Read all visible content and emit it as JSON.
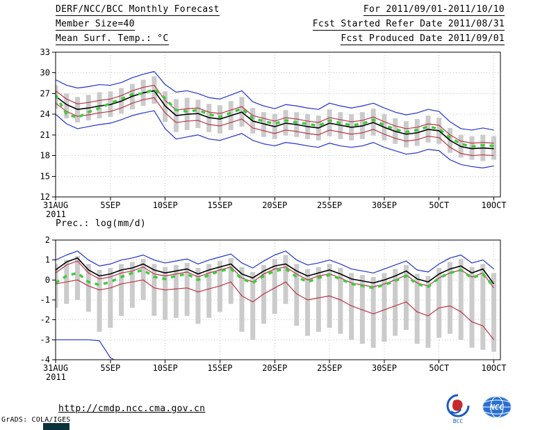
{
  "header": {
    "title": "DERF/NCC/BCC Monthly Forecast",
    "member_size": "Member Size=40",
    "temp_label": "Mean Surf. Temp.: °C",
    "for_range": "For 2011/09/01-2011/10/10",
    "refer_date": "Fcst Started Refer Date 2011/08/31",
    "produced_date": "Fcst Produced Date 2011/09/01"
  },
  "panels": {
    "prec_label": "Prec.: log(mm/d)"
  },
  "footer": {
    "url": "http://cmdp.ncc.cma.gov.cn",
    "credit": "GrADS: COLA/IGES",
    "bcc_label": "BCC",
    "ncc_label": "NCC"
  },
  "chart_data": [
    {
      "id": "mean-surface-temperature",
      "type": "line",
      "title": "Mean Surf. Temp.: °C",
      "xlabel": "",
      "ylabel": "°C",
      "xlim": [
        0,
        40.6
      ],
      "ylim": [
        12,
        33
      ],
      "yticks": [
        12,
        15,
        18,
        21,
        24,
        27,
        30,
        33
      ],
      "x_tick_positions": [
        0,
        5,
        10,
        15,
        20,
        25,
        30,
        35,
        40
      ],
      "x_tick_labels": [
        "31AUG",
        "5SEP",
        "10SEP",
        "15SEP",
        "20SEP",
        "25SEP",
        "30SEP",
        "5OCT",
        "10OCT"
      ],
      "x_sub_label": "2011",
      "grid": "dotted",
      "grid_color": "#c0c0c0",
      "bars": {
        "name": "ensemble-spread",
        "color": "#cbcbcb",
        "high": [
          28.2,
          27.0,
          26.5,
          26.8,
          27.2,
          27.3,
          27.8,
          28.4,
          29.0,
          29.5,
          27.3,
          26.2,
          26.4,
          26.1,
          25.5,
          25.3,
          25.9,
          26.5,
          24.9,
          24.3,
          24.0,
          24.6,
          24.3,
          24.0,
          23.8,
          24.7,
          24.3,
          24.0,
          24.3,
          24.8,
          24.0,
          23.4,
          23.0,
          23.3,
          23.8,
          23.5,
          22.0,
          21.0,
          20.8,
          21.0,
          20.8
        ],
        "low": [
          24.8,
          23.4,
          22.8,
          23.1,
          23.4,
          23.6,
          24.1,
          24.7,
          25.2,
          25.5,
          22.9,
          21.4,
          21.7,
          22.0,
          21.4,
          21.2,
          21.7,
          22.2,
          21.2,
          20.7,
          20.4,
          20.9,
          20.7,
          20.4,
          20.2,
          20.8,
          20.4,
          20.2,
          20.4,
          20.9,
          20.2,
          19.7,
          19.2,
          19.4,
          19.9,
          19.7,
          18.4,
          17.7,
          17.4,
          17.2,
          17.4
        ]
      },
      "series": [
        {
          "name": "ensemble-max",
          "color": "#2233cc",
          "width": 1.2,
          "values": [
            29.0,
            28.2,
            27.8,
            28.0,
            28.3,
            28.2,
            28.6,
            29.3,
            29.8,
            30.2,
            28.3,
            27.2,
            27.4,
            27.0,
            26.4,
            26.2,
            26.8,
            27.4,
            25.8,
            25.2,
            24.8,
            25.4,
            25.2,
            24.9,
            24.7,
            25.6,
            25.2,
            24.9,
            25.2,
            25.6,
            24.9,
            24.3,
            23.9,
            24.2,
            24.7,
            24.4,
            22.9,
            21.9,
            21.7,
            22.0,
            21.7
          ]
        },
        {
          "name": "ensemble-min",
          "color": "#2233cc",
          "width": 1.2,
          "values": [
            24.0,
            22.6,
            21.9,
            22.2,
            22.5,
            22.7,
            23.2,
            23.8,
            24.2,
            24.5,
            21.9,
            20.4,
            20.7,
            21.0,
            20.4,
            20.2,
            20.7,
            21.2,
            20.2,
            19.7,
            19.4,
            19.9,
            19.7,
            19.4,
            19.2,
            19.8,
            19.4,
            19.2,
            19.4,
            19.9,
            19.2,
            18.7,
            18.2,
            18.4,
            18.9,
            18.7,
            17.4,
            16.7,
            16.4,
            16.2,
            16.5
          ]
        },
        {
          "name": "upper-quartile",
          "color": "#bb3344",
          "width": 1.2,
          "values": [
            27.4,
            26.2,
            25.5,
            25.7,
            26.0,
            26.2,
            26.7,
            27.4,
            27.9,
            28.2,
            26.0,
            24.6,
            24.8,
            24.9,
            24.3,
            24.1,
            24.6,
            25.1,
            23.8,
            23.4,
            23.0,
            23.5,
            23.3,
            23.0,
            22.8,
            23.5,
            23.2,
            22.9,
            23.1,
            23.6,
            22.9,
            22.3,
            21.9,
            22.1,
            22.6,
            22.4,
            21.0,
            20.1,
            19.8,
            19.9,
            19.8
          ]
        },
        {
          "name": "lower-quartile",
          "color": "#bb3344",
          "width": 1.2,
          "values": [
            25.6,
            24.4,
            23.7,
            23.9,
            24.2,
            24.4,
            24.9,
            25.6,
            26.1,
            26.4,
            24.2,
            22.8,
            23.0,
            23.1,
            22.5,
            22.3,
            22.8,
            23.3,
            22.0,
            21.6,
            21.2,
            21.7,
            21.5,
            21.2,
            21.0,
            21.7,
            21.4,
            21.1,
            21.3,
            21.8,
            21.1,
            20.5,
            20.1,
            20.3,
            20.8,
            20.6,
            19.2,
            18.3,
            18.0,
            18.1,
            18.0
          ]
        },
        {
          "name": "ensemble-median",
          "color": "#000000",
          "width": 1.6,
          "values": [
            26.6,
            25.4,
            24.7,
            24.9,
            25.2,
            25.4,
            25.9,
            26.6,
            27.1,
            27.4,
            25.2,
            23.8,
            24.0,
            24.1,
            23.5,
            23.3,
            23.8,
            24.3,
            23.0,
            22.6,
            22.2,
            22.7,
            22.5,
            22.2,
            22.0,
            22.7,
            22.4,
            22.1,
            22.3,
            22.8,
            22.1,
            21.5,
            21.1,
            21.3,
            21.8,
            21.6,
            20.2,
            19.3,
            19.0,
            19.1,
            19.0
          ]
        },
        {
          "name": "forecast-dashed",
          "color": "#3ecb3e",
          "width": 3.5,
          "dash": "6,7",
          "values": [
            26.8,
            24.0,
            23.5,
            24.3,
            24.9,
            25.6,
            26.2,
            26.9,
            27.0,
            27.6,
            26.3,
            24.6,
            24.4,
            24.6,
            24.0,
            23.6,
            24.2,
            24.8,
            23.4,
            23.0,
            22.6,
            23.1,
            22.8,
            22.6,
            22.3,
            23.1,
            22.7,
            22.4,
            22.6,
            23.2,
            22.4,
            21.8,
            21.4,
            21.7,
            22.2,
            21.9,
            20.6,
            19.7,
            19.3,
            19.5,
            19.4
          ]
        }
      ]
    },
    {
      "id": "precipitation",
      "type": "line",
      "title": "Prec.: log(mm/d)",
      "xlabel": "",
      "ylabel": "log(mm/d)",
      "xlim": [
        0,
        40.6
      ],
      "ylim": [
        -4,
        2
      ],
      "yticks": [
        -4,
        -3,
        -2,
        -1,
        0,
        1,
        2
      ],
      "x_tick_positions": [
        0,
        5,
        10,
        15,
        20,
        25,
        30,
        35,
        40
      ],
      "x_tick_labels": [
        "31AUG",
        "5SEP",
        "10SEP",
        "15SEP",
        "20SEP",
        "25SEP",
        "30SEP",
        "5OCT",
        "10OCT"
      ],
      "x_sub_label": "2011",
      "grid": "dotted",
      "grid_color": "#c0c0c0",
      "bars": {
        "name": "ensemble-spread",
        "color": "#cbcbcb",
        "high": [
          0.8,
          1.0,
          1.2,
          0.8,
          0.5,
          0.6,
          0.8,
          0.9,
          1.05,
          0.8,
          0.65,
          0.75,
          0.85,
          0.6,
          0.8,
          0.95,
          1.1,
          0.65,
          0.4,
          0.75,
          1.05,
          1.25,
          0.8,
          0.55,
          0.65,
          0.8,
          0.6,
          0.35,
          0.25,
          0.15,
          0.35,
          0.55,
          0.75,
          0.3,
          0.2,
          0.6,
          0.9,
          1.05,
          0.65,
          0.8,
          0.35
        ],
        "low": [
          -1.4,
          -1.2,
          -1.0,
          -1.6,
          -2.6,
          -2.4,
          -1.8,
          -1.4,
          -1.0,
          -1.8,
          -2.0,
          -1.9,
          -1.8,
          -2.2,
          -1.9,
          -1.6,
          -1.2,
          -2.6,
          -3.0,
          -2.2,
          -1.7,
          -1.2,
          -2.3,
          -2.8,
          -2.6,
          -2.4,
          -2.7,
          -3.0,
          -3.2,
          -3.4,
          -3.1,
          -2.8,
          -2.5,
          -3.2,
          -3.4,
          -2.9,
          -2.7,
          -3.0,
          -3.4,
          -3.5,
          -3.6
        ]
      },
      "series": [
        {
          "name": "ensemble-max",
          "color": "#2233cc",
          "width": 1.2,
          "values": [
            1.0,
            1.25,
            1.45,
            1.0,
            0.7,
            0.8,
            1.0,
            1.1,
            1.25,
            1.0,
            0.85,
            0.95,
            1.05,
            0.8,
            1.0,
            1.15,
            1.3,
            0.85,
            0.6,
            0.95,
            1.25,
            1.45,
            1.0,
            0.75,
            0.85,
            1.0,
            0.8,
            0.55,
            0.45,
            0.35,
            0.55,
            0.75,
            0.95,
            0.5,
            0.4,
            0.8,
            1.1,
            1.25,
            0.85,
            1.0,
            0.55
          ]
        },
        {
          "name": "ensemble-min",
          "color": "#2233cc",
          "width": 1.2,
          "values": [
            -3.0,
            -3.0,
            -3.0,
            -3.0,
            -3.05,
            -3.9,
            -4.2,
            -4.3,
            -4.3,
            -4.3,
            -4.3,
            -4.3,
            -4.3,
            -4.3,
            -4.3,
            -4.3,
            -4.3,
            -4.3,
            -4.3,
            -4.3,
            -4.3,
            -4.3,
            -4.3,
            -4.3,
            -4.3,
            -4.3,
            -4.3,
            -4.3,
            -4.3,
            -4.3,
            -4.3,
            -4.3,
            -4.3,
            -4.3,
            -4.3,
            -4.3,
            -4.3,
            -4.3,
            -4.3,
            -4.3,
            -4.3
          ]
        },
        {
          "name": "upper-quartile",
          "color": "#bb3344",
          "width": 1.2,
          "values": [
            0.35,
            0.75,
            0.95,
            0.35,
            0.05,
            0.15,
            0.35,
            0.45,
            0.65,
            0.3,
            0.2,
            0.3,
            0.4,
            0.15,
            0.35,
            0.5,
            0.65,
            0.1,
            -0.1,
            0.3,
            0.55,
            0.65,
            0.3,
            0.0,
            0.2,
            0.3,
            0.1,
            -0.15,
            -0.25,
            -0.35,
            -0.2,
            0.0,
            0.25,
            -0.15,
            -0.3,
            0.1,
            0.35,
            0.5,
            0.15,
            0.35,
            -0.4
          ]
        },
        {
          "name": "lower-quartile",
          "color": "#bb3344",
          "width": 1.2,
          "values": [
            -0.2,
            -0.1,
            0.0,
            -0.3,
            -0.5,
            -0.4,
            -0.2,
            -0.1,
            0.0,
            -0.4,
            -0.5,
            -0.45,
            -0.4,
            -0.6,
            -0.45,
            -0.3,
            -0.1,
            -0.8,
            -1.1,
            -0.7,
            -0.4,
            -0.1,
            -0.7,
            -1.0,
            -0.9,
            -0.8,
            -1.0,
            -1.3,
            -1.5,
            -1.7,
            -1.5,
            -1.3,
            -1.1,
            -1.6,
            -1.8,
            -1.4,
            -1.3,
            -1.6,
            -2.1,
            -2.3,
            -3.0
          ]
        },
        {
          "name": "ensemble-median",
          "color": "#000000",
          "width": 1.6,
          "values": [
            0.5,
            0.9,
            1.1,
            0.5,
            0.2,
            0.3,
            0.5,
            0.6,
            0.8,
            0.5,
            0.35,
            0.45,
            0.55,
            0.3,
            0.5,
            0.65,
            0.8,
            0.3,
            0.1,
            0.45,
            0.7,
            0.8,
            0.45,
            0.2,
            0.35,
            0.5,
            0.3,
            0.05,
            -0.05,
            -0.15,
            0.0,
            0.2,
            0.45,
            0.05,
            -0.1,
            0.3,
            0.55,
            0.7,
            0.35,
            0.55,
            -0.2
          ]
        },
        {
          "name": "forecast-dashed",
          "color": "#3ecb3e",
          "width": 3.5,
          "dash": "6,7",
          "values": [
            -0.15,
            0.2,
            0.35,
            -0.1,
            -0.25,
            -0.1,
            0.15,
            0.35,
            0.5,
            0.15,
            0.05,
            0.2,
            0.3,
            0.0,
            0.25,
            0.45,
            0.55,
            0.05,
            -0.15,
            0.2,
            0.45,
            0.55,
            0.15,
            -0.1,
            0.1,
            0.25,
            0.05,
            -0.2,
            -0.3,
            -0.4,
            -0.25,
            -0.05,
            0.2,
            -0.2,
            -0.35,
            0.1,
            0.35,
            0.5,
            0.1,
            0.3,
            -0.35
          ]
        }
      ]
    }
  ]
}
